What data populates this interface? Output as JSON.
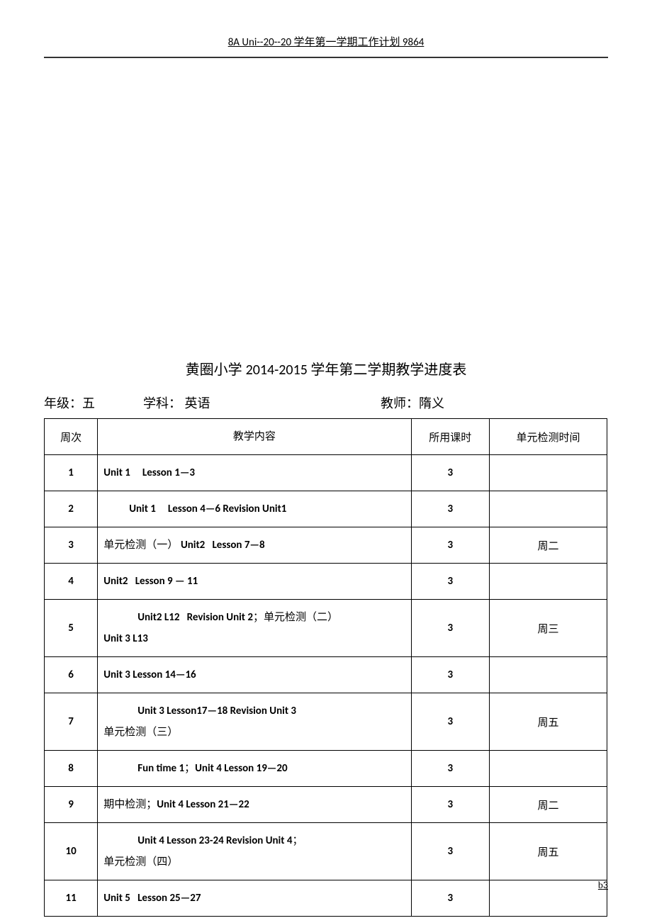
{
  "header": {
    "text_prefix": "8A Uni--20--20 ",
    "text_mid": "学年第一学期工作计划",
    "text_suffix": " 9864"
  },
  "title": {
    "prefix": "黄圈小学 ",
    "year": "2014-2015 ",
    "suffix": "学年第二学期教学进度表"
  },
  "meta": {
    "grade_label": "年级：",
    "grade_value": "五",
    "subject_label": "学科：",
    "subject_value": "  英语",
    "teacher_label": "教师：",
    "teacher_value": "隋义"
  },
  "columns": {
    "week": "周次",
    "content": "教学内容",
    "hours": "所用课时",
    "test": "单元检测时间"
  },
  "rows": [
    {
      "week": "1",
      "content_html": "<span class='bold'>Unit 1&nbsp;&nbsp;&nbsp;&nbsp;&nbsp;Lesson 1—3</span>",
      "hours": "3",
      "test": ""
    },
    {
      "week": "2",
      "content_html": "<span class='indent bold'>Unit 1&nbsp;&nbsp;&nbsp;&nbsp;&nbsp;Lesson 4—6 Revision Unit1</span>",
      "hours": "3",
      "test": ""
    },
    {
      "week": "3",
      "content_html": "<span class='cn'>单元检测（一）</span> <span class='bold'>Unit2&nbsp;&nbsp;&nbsp;Lesson 7—8</span>",
      "hours": "3",
      "test": "周二"
    },
    {
      "week": "4",
      "content_html": "<span class='bold'>Unit2&nbsp;&nbsp;&nbsp;Lesson 9  —  11</span>",
      "hours": "3",
      "test": ""
    },
    {
      "week": "5",
      "content_html": "<span class='multiline-indent bold'>Unit2 L12&nbsp;&nbsp;&nbsp;Revision Unit 2<span class='cn'>；单元检测（二）</span></span><span class='bold'>Unit 3 L13</span>",
      "hours": "3",
      "test": "周三"
    },
    {
      "week": "6",
      "content_html": "<span class='bold'>Unit 3 Lesson 14—16</span>",
      "hours": "3",
      "test": ""
    },
    {
      "week": "7",
      "content_html": "<span class='multiline-indent bold'>Unit 3 Lesson17—18 Revision Unit 3</span><span class='cn'>单元检测（三）</span>",
      "hours": "3",
      "test": "周五"
    },
    {
      "week": "8",
      "content_html": "<span class='indent2 bold'>Fun time 1<span class='cn'>；</span>Unit 4 Lesson 19—20</span>",
      "hours": "3",
      "test": ""
    },
    {
      "week": "9",
      "content_html": "<span class='cn'>期中检测；</span><span class='bold'>Unit 4 Lesson 21—22</span>",
      "hours": "3",
      "test": "周二"
    },
    {
      "week": "10",
      "content_html": "<span class='multiline-indent bold'>Unit 4 Lesson 23-24 Revision Unit 4<span class='cn'>；</span></span><span class='cn'>单元检测（四）</span>",
      "hours": "3",
      "test": "周五"
    },
    {
      "week": "11",
      "content_html": "<span class='bold'>Unit 5&nbsp;&nbsp;&nbsp;Lesson 25—27</span>",
      "hours": "3",
      "test": ""
    }
  ],
  "footer": {
    "prefix": "b",
    "page": "3"
  }
}
